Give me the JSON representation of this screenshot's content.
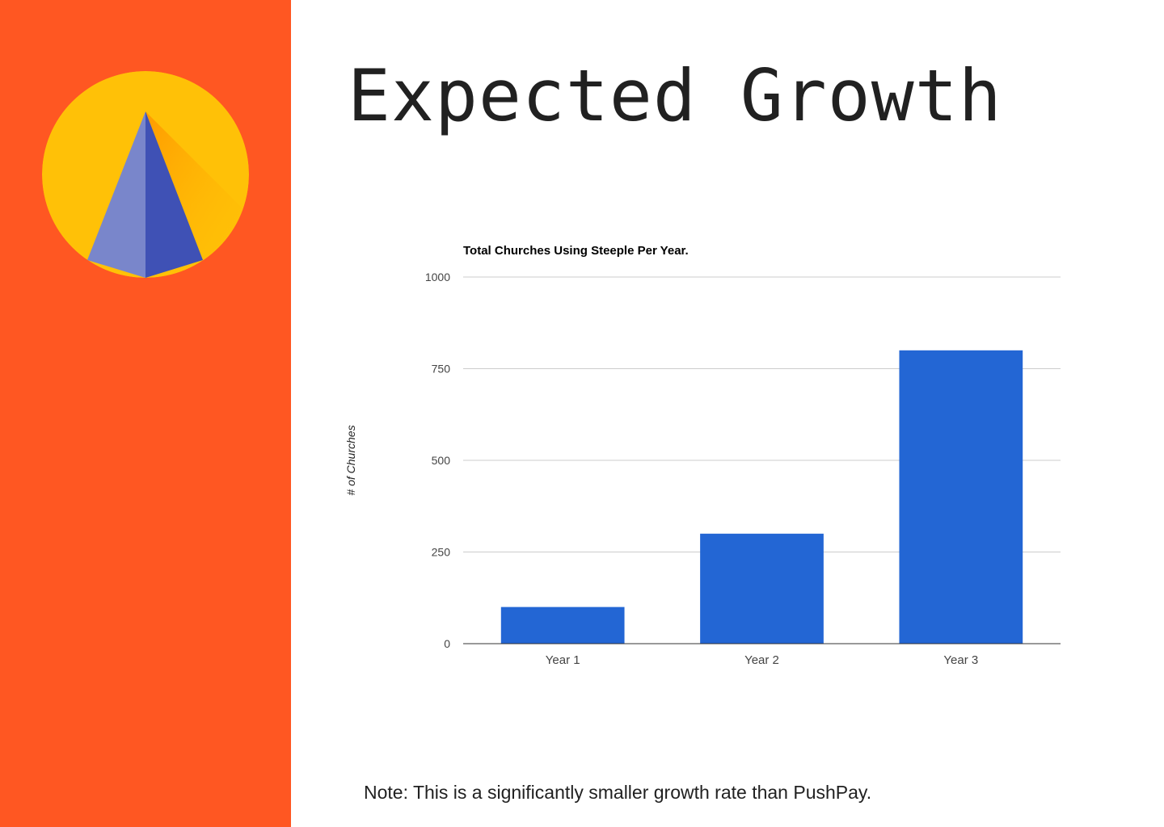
{
  "slide": {
    "title": "Expected Growth",
    "note": "Note: This is a significantly smaller growth rate than PushPay."
  },
  "colors": {
    "sidebar": "#ff5722",
    "logo_circle": "#ffc107",
    "logo_left_face": "#7986cb",
    "logo_right_face": "#3f51b5",
    "bar": "#2366d4",
    "title_text": "#212121"
  },
  "logo": {
    "icon": "steeple-logo-icon"
  },
  "chart_data": {
    "type": "bar",
    "title": "Total Churches Using Steeple Per Year.",
    "xlabel": "",
    "ylabel": "# of Churches",
    "categories": [
      "Year 1",
      "Year 2",
      "Year 3"
    ],
    "series": [
      {
        "values": [
          100,
          300,
          800
        ]
      }
    ],
    "ylim": [
      0,
      1000
    ],
    "yticks": [
      0,
      250,
      500,
      750,
      1000
    ],
    "grid": true,
    "legend": "none"
  }
}
